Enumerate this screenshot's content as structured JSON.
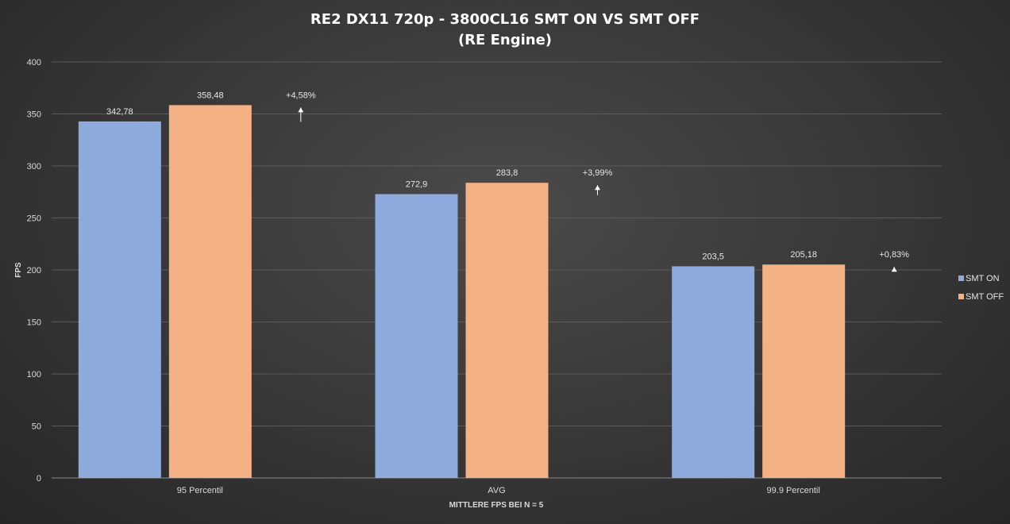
{
  "chart_data": {
    "type": "bar",
    "title": "RE2 DX11 720p - 3800CL16 SMT ON VS SMT OFF",
    "subtitle": "(RE Engine)",
    "xlabel": "MITTLERE FPS BEI N = 5",
    "ylabel": "FPS",
    "ylim": [
      0,
      400
    ],
    "yticks": [
      0,
      50,
      100,
      150,
      200,
      250,
      300,
      350,
      400
    ],
    "categories": [
      "95 Percentil",
      "AVG",
      "99.9 Percentil"
    ],
    "series": [
      {
        "name": "SMT ON",
        "color": "#8faadc",
        "values": [
          342.78,
          272.9,
          203.5
        ],
        "labels": [
          "342,78",
          "272,9",
          "203,5"
        ]
      },
      {
        "name": "SMT OFF",
        "color": "#f4b183",
        "values": [
          358.48,
          283.8,
          205.18
        ],
        "labels": [
          "358,48",
          "283,8",
          "205,18"
        ]
      }
    ],
    "annotations": [
      {
        "category": "95 Percentil",
        "text": "+4,58%",
        "icon": "up-arrow-icon"
      },
      {
        "category": "AVG",
        "text": "+3,99%",
        "icon": "up-arrow-icon"
      },
      {
        "category": "99.9 Percentil",
        "text": "+0,83%",
        "icon": "up-arrow-icon"
      }
    ],
    "grid": true,
    "legend_position": "right"
  }
}
